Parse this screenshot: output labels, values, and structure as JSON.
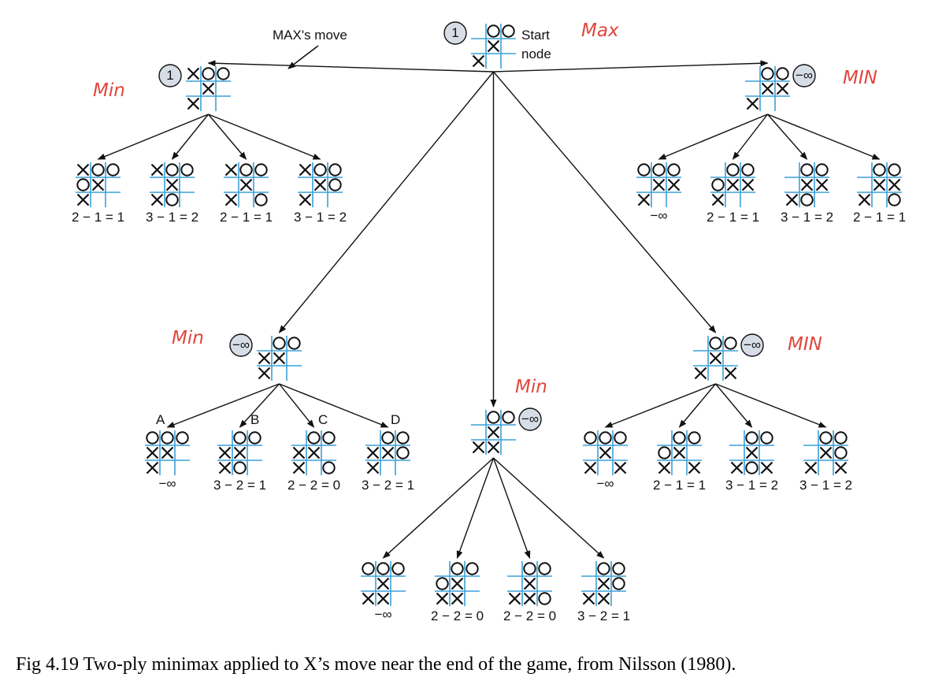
{
  "caption": "Fig 4.19 Two-ply minimax applied to X’s move near the end of the game, from Nilsson (1980).",
  "arrow_label": "MAX's move",
  "start_label_1": "Start",
  "start_label_2": "node",
  "handwritten": {
    "root": "Max",
    "n1": "Min",
    "n2": "MIN",
    "n3": "Min",
    "n4": "Min",
    "n5": "MIN"
  },
  "nodes": [
    {
      "id": "root",
      "board": [
        "_OO",
        "_X_",
        "X__"
      ],
      "value": "1"
    },
    {
      "id": "n1",
      "board": [
        "XOO",
        "_X_",
        "X__"
      ],
      "value": "1",
      "parent": "root"
    },
    {
      "id": "n2",
      "board": [
        "_OO",
        "_XX",
        "X__"
      ],
      "value": "−∞",
      "parent": "root"
    },
    {
      "id": "n3",
      "board": [
        "_OO",
        "XX_",
        "X__"
      ],
      "value": "−∞",
      "parent": "root"
    },
    {
      "id": "n4",
      "board": [
        "_OO",
        "_X_",
        "XX_"
      ],
      "value": "−∞",
      "parent": "root"
    },
    {
      "id": "n5",
      "board": [
        "_OO",
        "_X_",
        "X_X"
      ],
      "value": "−∞",
      "parent": "root"
    },
    {
      "id": "l1a",
      "board": [
        "XOO",
        "OX_",
        "X__"
      ],
      "score": "2 − 1 = 1",
      "parent": "n1"
    },
    {
      "id": "l1b",
      "board": [
        "XOO",
        "_X_",
        "XO_"
      ],
      "score": "3 − 1 = 2",
      "parent": "n1"
    },
    {
      "id": "l1c",
      "board": [
        "XOO",
        "_X_",
        "X_O"
      ],
      "score": "2 − 1 = 1",
      "parent": "n1"
    },
    {
      "id": "l1d",
      "board": [
        "XOO",
        "_XO",
        "X__"
      ],
      "score": "3 − 1 = 2",
      "parent": "n1"
    },
    {
      "id": "l2a",
      "board": [
        "OOO",
        "_XX",
        "X__"
      ],
      "score": "−∞",
      "parent": "n2"
    },
    {
      "id": "l2b",
      "board": [
        "_OO",
        "OXX",
        "X__"
      ],
      "score": "2 − 1 = 1",
      "parent": "n2"
    },
    {
      "id": "l2c",
      "board": [
        "_OO",
        "_XX",
        "XO_"
      ],
      "score": "3 − 1 = 2",
      "parent": "n2"
    },
    {
      "id": "l2d",
      "board": [
        "_OO",
        "_XX",
        "X_O"
      ],
      "score": "2 − 1 = 1",
      "parent": "n2"
    },
    {
      "id": "l3a",
      "board": [
        "OOO",
        "XX_",
        "X__"
      ],
      "score": "−∞",
      "label": "A",
      "parent": "n3"
    },
    {
      "id": "l3b",
      "board": [
        "_OO",
        "XX_",
        "XO_"
      ],
      "score": "3 − 2 = 1",
      "label": "B",
      "parent": "n3"
    },
    {
      "id": "l3c",
      "board": [
        "_OO",
        "XX_",
        "X_O"
      ],
      "score": "2 − 2 = 0",
      "label": "C",
      "parent": "n3"
    },
    {
      "id": "l3d",
      "board": [
        "_OO",
        "XXO",
        "X__"
      ],
      "score": "3 − 2 = 1",
      "label": "D",
      "parent": "n3"
    },
    {
      "id": "l4a",
      "board": [
        "OOO",
        "_X_",
        "XX_"
      ],
      "score": "−∞",
      "parent": "n4"
    },
    {
      "id": "l4b",
      "board": [
        "_OO",
        "OX_",
        "XX_"
      ],
      "score": "2 − 2 = 0",
      "parent": "n4"
    },
    {
      "id": "l4c",
      "board": [
        "_OO",
        "_X_",
        "XXO"
      ],
      "score": "2 − 2 = 0",
      "parent": "n4"
    },
    {
      "id": "l4d",
      "board": [
        "_OO",
        "_XO",
        "XX_"
      ],
      "score": "3 − 2 = 1",
      "parent": "n4"
    },
    {
      "id": "l5a",
      "board": [
        "OOO",
        "_X_",
        "X_X"
      ],
      "score": "−∞",
      "parent": "n5"
    },
    {
      "id": "l5b",
      "board": [
        "_OO",
        "OX_",
        "X_X"
      ],
      "score": "2 − 1 = 1",
      "parent": "n5"
    },
    {
      "id": "l5c",
      "board": [
        "_OO",
        "_X_",
        "XOX"
      ],
      "score": "3 − 1 = 2",
      "parent": "n5"
    },
    {
      "id": "l5d",
      "board": [
        "_OO",
        "_XO",
        "X_X"
      ],
      "score": "3 − 1 = 2",
      "parent": "n5"
    }
  ],
  "colors": {
    "grid": "#3aa0d8",
    "circle_fill": "#d6dde6",
    "handwriting": "#e0463c",
    "ink": "#111111"
  }
}
